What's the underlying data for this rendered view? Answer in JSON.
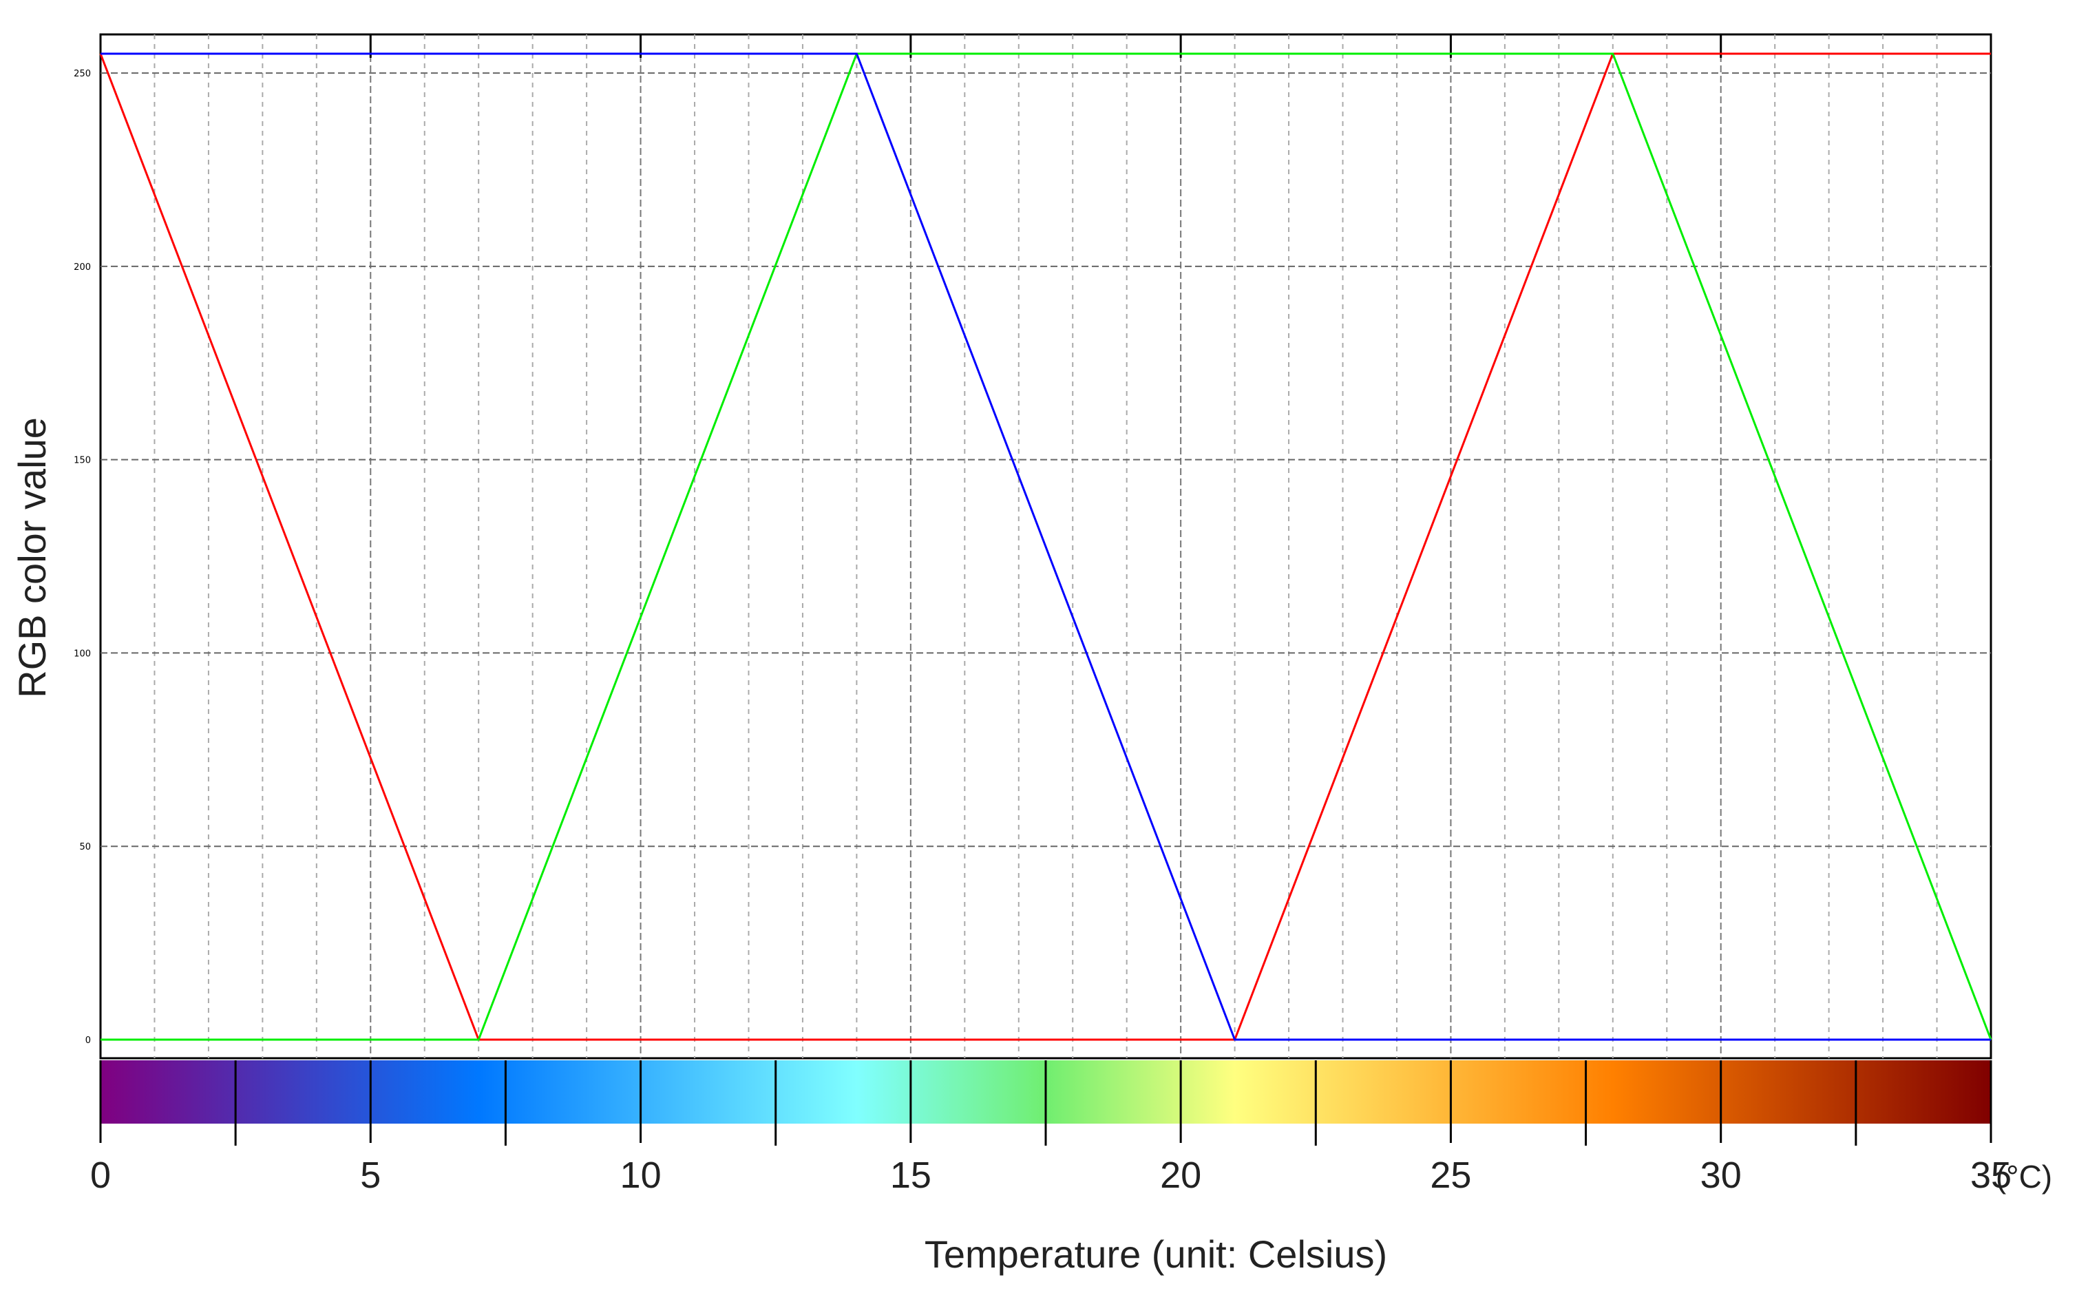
{
  "chart_data": {
    "type": "line",
    "title": "",
    "xlabel": "Temperature (unit: Celsius)",
    "ylabel": "RGB color value",
    "x_unit": "(°C)",
    "xlim": [
      0,
      35
    ],
    "ylim": [
      0,
      255
    ],
    "x_ticks": [
      0,
      5,
      10,
      15,
      20,
      25,
      30,
      35
    ],
    "x_tick_labels": [
      "0",
      "5",
      "10",
      "15",
      "20",
      "25",
      "30",
      "35"
    ],
    "y_ticks": [
      0,
      50,
      100,
      150,
      200,
      250
    ],
    "y_tick_labels": [
      "0",
      "50",
      "100",
      "150",
      "200",
      "250"
    ],
    "grid": true,
    "legend": "none",
    "series": [
      {
        "color": "#ff0000",
        "x": [
          0,
          7,
          21,
          28,
          35
        ],
        "y": [
          255,
          0,
          0,
          255,
          255
        ]
      },
      {
        "color": "#00ee00",
        "x": [
          0,
          7,
          14,
          28,
          35
        ],
        "y": [
          0,
          0,
          255,
          255,
          0
        ]
      },
      {
        "color": "#0000ff",
        "x": [
          0,
          14,
          21,
          35
        ],
        "y": [
          255,
          255,
          0,
          0
        ]
      }
    ],
    "colorbar": {
      "stops": [
        {
          "t": 0,
          "color": "#800080"
        },
        {
          "t": 7,
          "color": "#0078ff"
        },
        {
          "t": 14,
          "color": "#80ffff"
        },
        {
          "t": 17.5,
          "color": "#70ee70"
        },
        {
          "t": 21,
          "color": "#ffff80"
        },
        {
          "t": 28,
          "color": "#ff8000"
        },
        {
          "t": 35,
          "color": "#800000"
        }
      ],
      "dividers": [
        2.5,
        7.5,
        12.5,
        17.5,
        22.5,
        27.5,
        32.5
      ]
    }
  }
}
